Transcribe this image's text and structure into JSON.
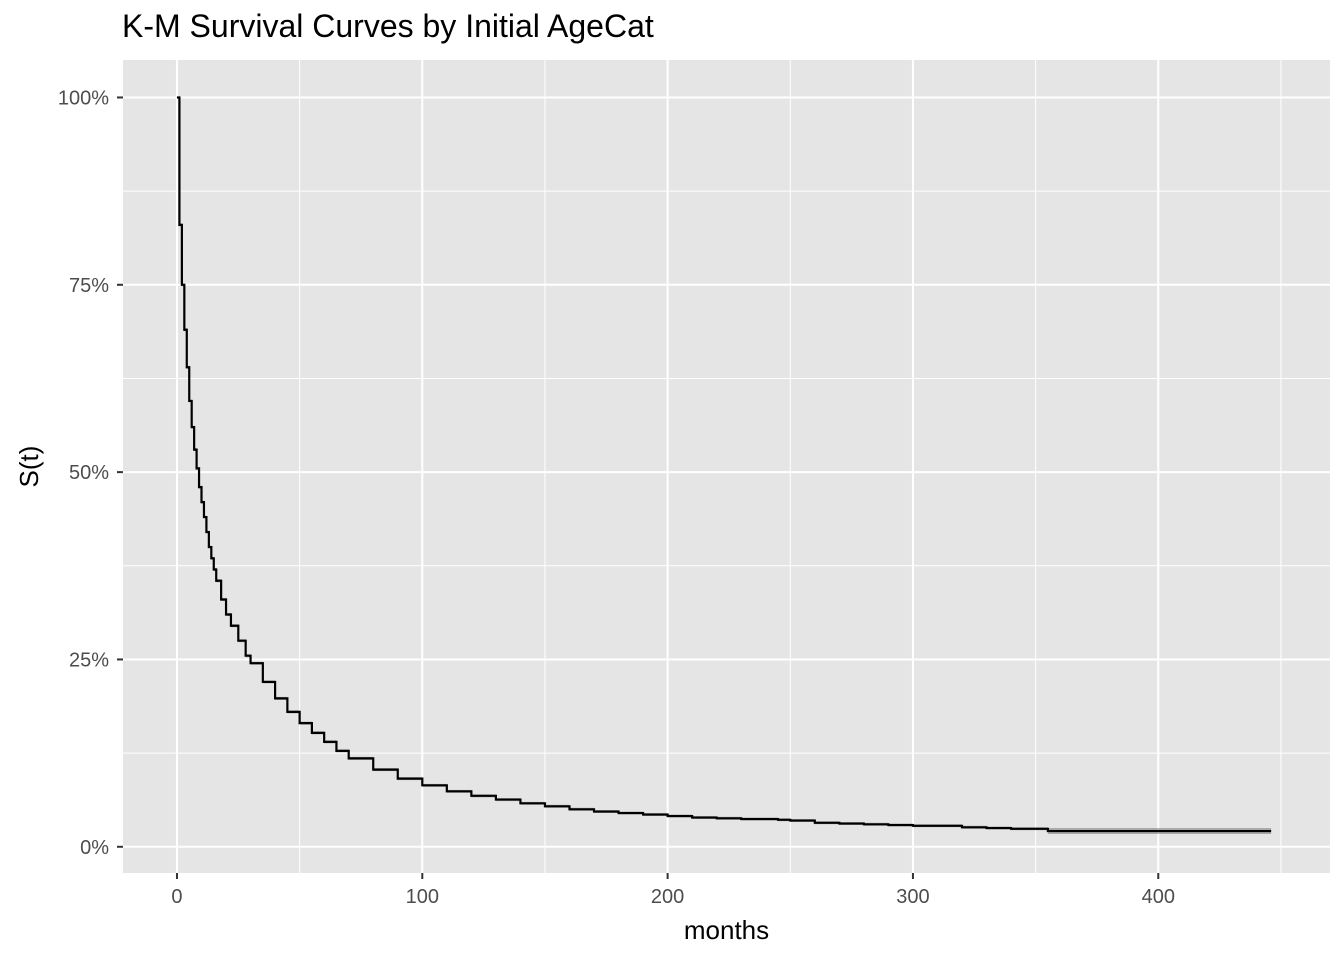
{
  "chart_data": {
    "type": "line",
    "title": "K-M Survival Curves by Initial AgeCat",
    "xlabel": "months",
    "ylabel": "S(t)",
    "xlim": [
      -22,
      470
    ],
    "ylim": [
      -0.035,
      1.05
    ],
    "x_ticks": [
      0,
      100,
      200,
      300,
      400
    ],
    "y_ticks": [
      0,
      0.25,
      0.5,
      0.75,
      1.0
    ],
    "y_tick_labels": [
      "0%",
      "25%",
      "50%",
      "75%",
      "100%"
    ],
    "x_tick_labels": [
      "0",
      "100",
      "200",
      "300",
      "400"
    ],
    "grid": true,
    "legend": "none",
    "colors": {
      "panel": "#e5e5e5",
      "grid": "#ffffff",
      "line": "#000000",
      "ribbon": "#808080"
    },
    "series": [
      {
        "x": [
          0,
          1,
          2,
          3,
          4,
          5,
          6,
          7,
          8,
          9,
          10,
          11,
          12,
          13,
          14,
          15,
          16,
          18,
          20,
          22,
          25,
          28,
          30,
          35,
          40,
          45,
          50,
          55,
          60,
          65,
          70,
          80,
          90,
          100,
          110,
          120,
          130,
          140,
          150,
          160,
          170,
          180,
          190,
          200,
          210,
          220,
          230,
          245,
          250,
          260,
          270,
          280,
          290,
          300,
          310,
          320,
          330,
          340,
          350,
          353,
          355,
          380,
          420,
          446
        ],
        "y": [
          1.0,
          0.83,
          0.75,
          0.69,
          0.64,
          0.595,
          0.56,
          0.53,
          0.505,
          0.48,
          0.46,
          0.44,
          0.42,
          0.4,
          0.385,
          0.37,
          0.355,
          0.33,
          0.31,
          0.295,
          0.275,
          0.255,
          0.245,
          0.22,
          0.198,
          0.18,
          0.165,
          0.152,
          0.14,
          0.128,
          0.118,
          0.103,
          0.091,
          0.082,
          0.074,
          0.068,
          0.063,
          0.058,
          0.054,
          0.05,
          0.047,
          0.045,
          0.043,
          0.041,
          0.039,
          0.038,
          0.037,
          0.036,
          0.035,
          0.032,
          0.031,
          0.03,
          0.029,
          0.028,
          0.028,
          0.026,
          0.025,
          0.024,
          0.024,
          0.024,
          0.021,
          0.021,
          0.021,
          0.021
        ],
        "ci_halfwidth": [
          0,
          0.002,
          0.002,
          0.002,
          0.002,
          0.002,
          0.002,
          0.002,
          0.002,
          0.002,
          0.002,
          0.002,
          0.002,
          0.002,
          0.002,
          0.002,
          0.002,
          0.002,
          0.002,
          0.002,
          0.002,
          0.002,
          0.002,
          0.002,
          0.002,
          0.002,
          0.002,
          0.002,
          0.002,
          0.002,
          0.002,
          0.002,
          0.002,
          0.002,
          0.002,
          0.002,
          0.002,
          0.002,
          0.002,
          0.002,
          0.002,
          0.002,
          0.002,
          0.002,
          0.002,
          0.002,
          0.002,
          0.002,
          0.002,
          0.002,
          0.002,
          0.002,
          0.002,
          0.002,
          0.002,
          0.002,
          0.002,
          0.002,
          0.002,
          0.002,
          0.004,
          0.004,
          0.004,
          0.004
        ]
      }
    ]
  }
}
